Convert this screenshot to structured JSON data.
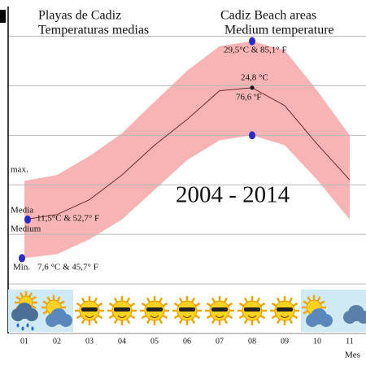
{
  "chart_data": {
    "type": "band-line",
    "title": [
      "Playas de Cadiz",
      "Temperaturas medias"
    ],
    "subtitle": [
      "Cadiz Beach areas",
      "Medium temperature"
    ],
    "period": "2004 - 2014",
    "x_label": "Mes",
    "categories": [
      "01",
      "02",
      "03",
      "04",
      "05",
      "06",
      "07",
      "08",
      "09",
      "10",
      "11"
    ],
    "series": [
      {
        "name": "max.",
        "color": "#f8b4b4",
        "values": [
          15.4,
          16.0,
          17.9,
          20.2,
          23.4,
          26.5,
          29.0,
          29.5,
          28.6,
          24.5,
          20.0
        ]
      },
      {
        "name": [
          "Media",
          "Medium"
        ],
        "color": "#6e2b2b",
        "values": [
          11.5,
          12.0,
          13.5,
          16.0,
          19.0,
          21.6,
          24.5,
          24.8,
          23.0,
          19.1,
          15.5
        ]
      },
      {
        "name": "Min.",
        "color": "#f8b4b4",
        "values": [
          7.6,
          8.0,
          9.5,
          11.5,
          14.5,
          17.5,
          19.5,
          20.0,
          19.0,
          15.5,
          11.5
        ]
      }
    ],
    "annotations": {
      "jan_media": "11,5°C  &  52,7° F",
      "jan_min": "7,6 °C  &  45,7° F",
      "aug_max": "29,5°C  &  85,1° F",
      "aug_media_c": "24,8 °C",
      "aug_media_f": "76,6 ºF"
    },
    "ylim": [
      0,
      33
    ],
    "yticks": [
      5,
      10,
      15,
      20,
      25,
      30
    ],
    "grid": true
  }
}
